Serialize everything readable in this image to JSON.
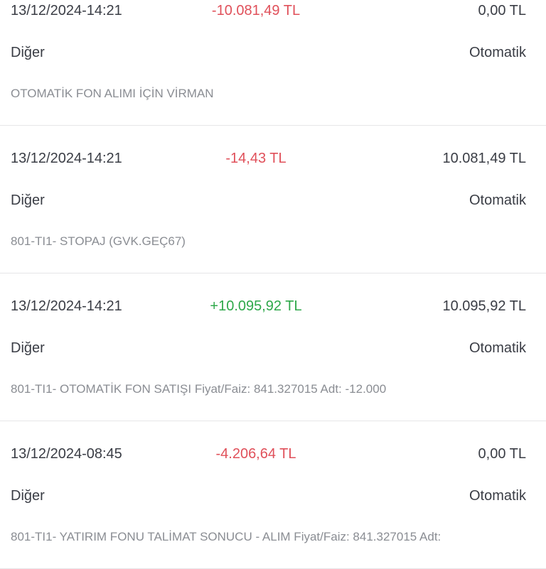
{
  "colors": {
    "negative": "#e0505a",
    "positive": "#2ea84a",
    "text": "#3a3d45",
    "muted": "#8a8d93"
  },
  "transactions": [
    {
      "date": "13/12/2024-14:21",
      "amount": "-10.081,49 TL",
      "sign": "negative",
      "balance": "0,00 TL",
      "category": "Diğer",
      "type": "Otomatik",
      "description": "OTOMATİK FON ALIMI İÇİN VİRMAN"
    },
    {
      "date": "13/12/2024-14:21",
      "amount": "-14,43 TL",
      "sign": "negative",
      "balance": "10.081,49 TL",
      "category": "Diğer",
      "type": "Otomatik",
      "description": "801-TI1- STOPAJ (GVK.GEÇ67)"
    },
    {
      "date": "13/12/2024-14:21",
      "amount": "+10.095,92 TL",
      "sign": "positive",
      "balance": "10.095,92 TL",
      "category": "Diğer",
      "type": "Otomatik",
      "description": "801-TI1- OTOMATİK FON SATIŞI Fiyat/Faiz: 841.327015 Adt: -12.000"
    },
    {
      "date": "13/12/2024-08:45",
      "amount": "-4.206,64 TL",
      "sign": "negative",
      "balance": "0,00 TL",
      "category": "Diğer",
      "type": "Otomatik",
      "description": "801-TI1- YATIRIM FONU TALİMAT SONUCU - ALIM Fiyat/Faiz: 841.327015 Adt:"
    }
  ]
}
